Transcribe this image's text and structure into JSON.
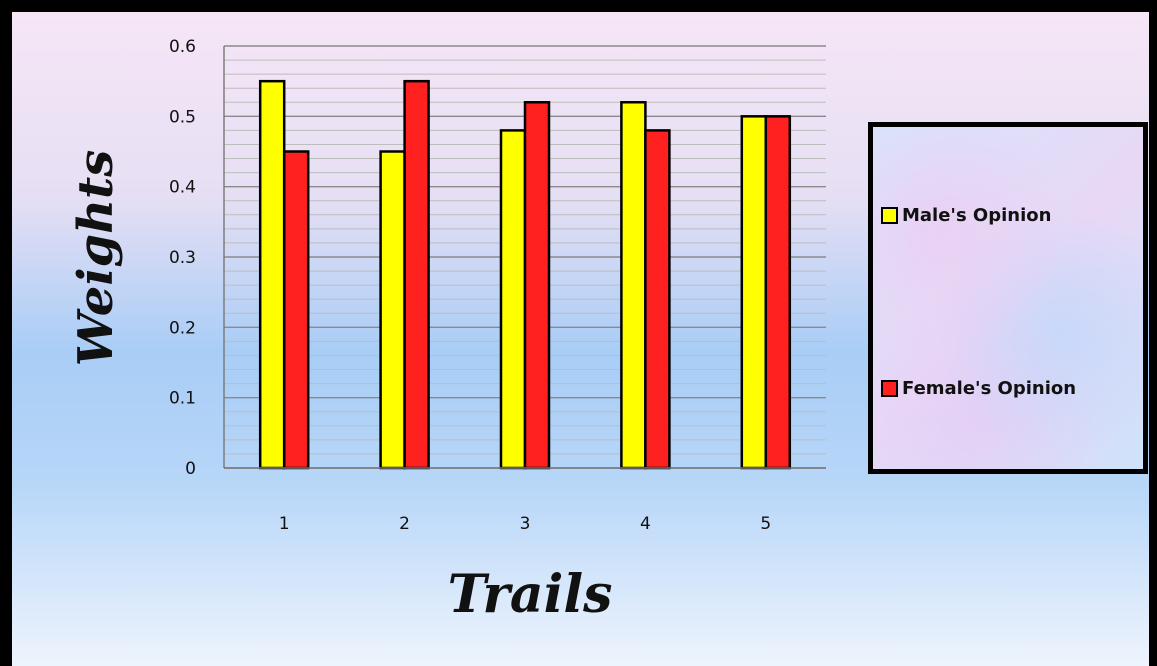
{
  "chart_data": {
    "type": "bar",
    "categories": [
      "1",
      "2",
      "3",
      "4",
      "5"
    ],
    "series": [
      {
        "name": "Male's Opinion",
        "color": "#ffff00",
        "values": [
          0.55,
          0.45,
          0.48,
          0.52,
          0.5
        ]
      },
      {
        "name": "Female's Opinion",
        "color": "#ff2020",
        "values": [
          0.45,
          0.55,
          0.52,
          0.48,
          0.5
        ]
      }
    ],
    "xlabel": "Trails",
    "ylabel": "Weights",
    "ylim": [
      0,
      0.6
    ],
    "yticks": [
      "0",
      "0.1",
      "0.2",
      "0.3",
      "0.4",
      "0.5",
      "0.6"
    ],
    "grid": true,
    "legend_position": "right"
  }
}
